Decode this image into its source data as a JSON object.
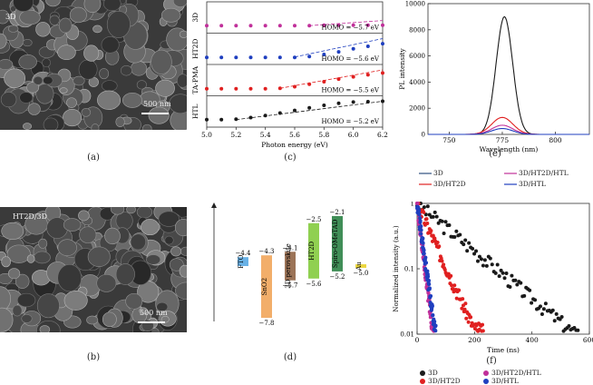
{
  "captions": {
    "a": "(a)",
    "b": "(b)",
    "c": "(c)",
    "d": "(d)",
    "e": "(e)",
    "f": "(f)"
  },
  "sem_a": {
    "label": "3D",
    "scale": "500 nm"
  },
  "sem_b": {
    "label": "HT2D/3D",
    "scale": "500 nm"
  },
  "colors": {
    "black": "#1a1a1a",
    "red": "#e02020",
    "blue": "#1f3fbf",
    "magenta": "#c0309a",
    "darkblue": "#2f4f7f"
  },
  "chart_data": [
    {
      "type": "scatter",
      "id": "c",
      "xlabel": "Photon energy (eV)",
      "xlim": [
        5.0,
        6.2
      ],
      "xticks": [
        "5.0",
        "5.2",
        "5.4",
        "5.6",
        "5.8",
        "6.0",
        "6.2"
      ],
      "series": [
        {
          "name": "3D",
          "color": "#c0309a",
          "homo": "HOMO = −5.7 eV",
          "onset": 5.7,
          "x": [
            5.0,
            5.1,
            5.2,
            5.3,
            5.4,
            5.5,
            5.6,
            5.7,
            5.8,
            5.9,
            6.0,
            6.1,
            6.2
          ],
          "y": [
            0.1,
            0.1,
            0.1,
            0.1,
            0.1,
            0.1,
            0.1,
            0.1,
            0.12,
            0.12,
            0.12,
            0.12,
            0.12
          ]
        },
        {
          "name": "HT2D",
          "color": "#1f3fbf",
          "homo": "HOMO = −5.6 eV",
          "onset": 5.6,
          "x": [
            5.0,
            5.1,
            5.2,
            5.3,
            5.4,
            5.5,
            5.6,
            5.7,
            5.8,
            5.9,
            6.0,
            6.1,
            6.2
          ],
          "y": [
            0.08,
            0.08,
            0.08,
            0.08,
            0.08,
            0.08,
            0.08,
            0.12,
            0.22,
            0.35,
            0.5,
            0.62,
            0.75
          ]
        },
        {
          "name": "TA-PMA",
          "color": "#e02020",
          "homo": "HOMO = −5.5 eV",
          "onset": 5.5,
          "x": [
            5.0,
            5.1,
            5.2,
            5.3,
            5.4,
            5.5,
            5.6,
            5.7,
            5.8,
            5.9,
            6.0,
            6.1,
            6.2
          ],
          "y": [
            0.08,
            0.08,
            0.08,
            0.08,
            0.08,
            0.1,
            0.18,
            0.3,
            0.42,
            0.55,
            0.66,
            0.76,
            0.85
          ]
        },
        {
          "name": "HTL",
          "color": "#1a1a1a",
          "homo": "HOMO = −5.2 eV",
          "onset": 5.2,
          "x": [
            5.0,
            5.1,
            5.2,
            5.3,
            5.4,
            5.5,
            5.6,
            5.7,
            5.8,
            5.9,
            6.0,
            6.1,
            6.2
          ],
          "y": [
            0.1,
            0.1,
            0.12,
            0.2,
            0.3,
            0.42,
            0.55,
            0.68,
            0.8,
            0.9,
            0.96,
            0.98,
            1.0
          ]
        }
      ]
    },
    {
      "type": "line",
      "id": "e",
      "xlabel": "Wavelength (nm)",
      "ylabel": "PL intensity",
      "xlim": [
        740,
        816
      ],
      "ylim": [
        0,
        10000
      ],
      "xticks": [
        750,
        775,
        800
      ],
      "yticks": [
        0,
        2000,
        4000,
        6000,
        8000,
        10000
      ],
      "series": [
        {
          "name": "3D",
          "color": "#1a1a1a",
          "peak_x": 776,
          "peak_y": 9000,
          "width": 5.5
        },
        {
          "name": "3D/HT2D",
          "color": "#e02020",
          "peak_x": 775,
          "peak_y": 1300,
          "width": 7
        },
        {
          "name": "3D/HT2D/HTL",
          "color": "#c0309a",
          "peak_x": 775,
          "peak_y": 700,
          "width": 7
        },
        {
          "name": "3D/HTL",
          "color": "#1f3fbf",
          "peak_x": 775,
          "peak_y": 450,
          "width": 7
        }
      ]
    },
    {
      "type": "scatter",
      "id": "f",
      "xlabel": "Time (ns)",
      "ylabel": "Normalized intensity (a.u.)",
      "xlim": [
        0,
        600
      ],
      "ylim": [
        0.01,
        1
      ],
      "yscale": "log",
      "xticks": [
        0,
        200,
        400,
        600
      ],
      "yticks": [
        "0.01",
        "0.1",
        "1"
      ],
      "series": [
        {
          "name": "3D",
          "color": "#1a1a1a",
          "tau": 120,
          "end": 560
        },
        {
          "name": "3D/HT2D",
          "color": "#e02020",
          "tau": 45,
          "end": 230
        },
        {
          "name": "3D/HT2D/HTL",
          "color": "#c0309a",
          "tau": 12,
          "end": 60
        },
        {
          "name": "3D/HTL",
          "color": "#1f3fbf",
          "tau": 14,
          "end": 65
        }
      ]
    },
    {
      "type": "diagram",
      "id": "d",
      "levels": [
        {
          "name": "FTO",
          "top": "−4.4",
          "top_v": -4.4,
          "bot_v": -4.9,
          "color": "#4fa3e0"
        },
        {
          "name": "SnO2",
          "top": "−4.3",
          "bottom": "−7.8",
          "top_v": -4.3,
          "bot_v": -7.8,
          "color": "#f0a050"
        },
        {
          "name": "3D perovskite",
          "top": "−4.1",
          "bottom": "−5.7",
          "top_v": -4.1,
          "bot_v": -5.7,
          "color": "#8a5a3a"
        },
        {
          "name": "HT2D",
          "top": "−2.5",
          "bottom": "−5.6",
          "top_v": -2.5,
          "bot_v": -5.6,
          "color": "#7cc832"
        },
        {
          "name": "Spiro-OMeTAD",
          "top": "−2.1",
          "bottom": "−5.2",
          "top_v": -2.1,
          "bot_v": -5.2,
          "color": "#1f7a3a"
        },
        {
          "name": "Au",
          "bottom": "−5.0",
          "top_v": -4.8,
          "bot_v": -5.0,
          "color": "#e8d020"
        }
      ]
    }
  ]
}
